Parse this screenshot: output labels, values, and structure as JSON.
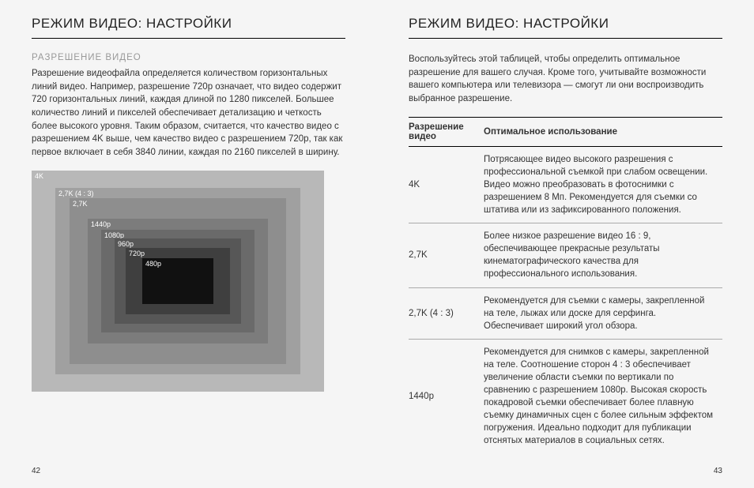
{
  "left": {
    "title": "РЕЖИМ ВИДЕО: НАСТРОЙКИ",
    "subheading": "РАЗРЕШЕНИЕ ВИДЕО",
    "paragraph": "Разрешение видеофайла определяется количеством горизонтальных линий видео. Например, разрешение 720p означает, что видео содержит 720 горизонтальных линий, каждая длиной по 1280 пикселей. Большее количество линий и пикселей обеспечивает детализацию и четкость более высокого уровня. Таким образом, считается, что качество видео с разрешением 4K выше, чем качество видео с разрешением 720p, так как первое включает в себя 3840 линии, каждая по 2160 пикселей в ширину.",
    "diagram": {
      "boxes": [
        {
          "label": "4K",
          "class": "box-4k",
          "bg": "#b8b8b8"
        },
        {
          "label": "2,7K (4 : 3)",
          "class": "box-27k43",
          "bg": "#a0a0a0"
        },
        {
          "label": "2,7K",
          "class": "box-27k",
          "bg": "#8e8e8e"
        },
        {
          "label": "1440p",
          "class": "box-1440",
          "bg": "#7c7c7c"
        },
        {
          "label": "1080p",
          "class": "box-1080",
          "bg": "#6a6a6a"
        },
        {
          "label": "960p",
          "class": "box-960",
          "bg": "#575757"
        },
        {
          "label": "720p",
          "class": "box-720",
          "bg": "#3f3f3f"
        },
        {
          "label": "480p",
          "class": "box-480",
          "bg": "#111111"
        }
      ]
    },
    "page_num": "42"
  },
  "right": {
    "title": "РЕЖИМ ВИДЕО: НАСТРОЙКИ",
    "intro": "Воспользуйтесь этой таблицей, чтобы определить оптимальное разрешение для вашего случая. Кроме того, учитывайте возможности вашего компьютера или телевизора — смогут ли они воспроизводить выбранное разрешение.",
    "table": {
      "header_res": "Разрешение видео",
      "header_use": "Оптимальное использование",
      "rows": [
        {
          "res": "4K",
          "use": "Потрясающее видео высокого разрешения с профессиональной съемкой при слабом освещении. Видео можно преобразовать в фотоснимки с разрешением 8 Мп. Рекомендуется для съемки со штатива или из зафиксированного положения."
        },
        {
          "res": "2,7K",
          "use": "Более низкое разрешение видео 16 : 9, обеспечивающее прекрасные результаты кинематографического качества для профессионального использования."
        },
        {
          "res": "2,7K (4 : 3)",
          "use": "Рекомендуется для съемки с камеры, закрепленной на теле, лыжах или доске для серфинга. Обеспечивает широкий угол обзора."
        },
        {
          "res": "1440p",
          "use": "Рекомендуется для снимков с камеры, закрепленной на теле. Соотношение сторон 4 : 3 обеспечивает увеличение области съемки по вертикали по сравнению с разрешением 1080p. Высокая скорость покадровой съемки обеспечивает более плавную съемку динамичных сцен с более сильным эффектом погружения. Идеально подходит для публикации отснятых материалов в социальных сетях."
        }
      ]
    },
    "page_num": "43"
  }
}
